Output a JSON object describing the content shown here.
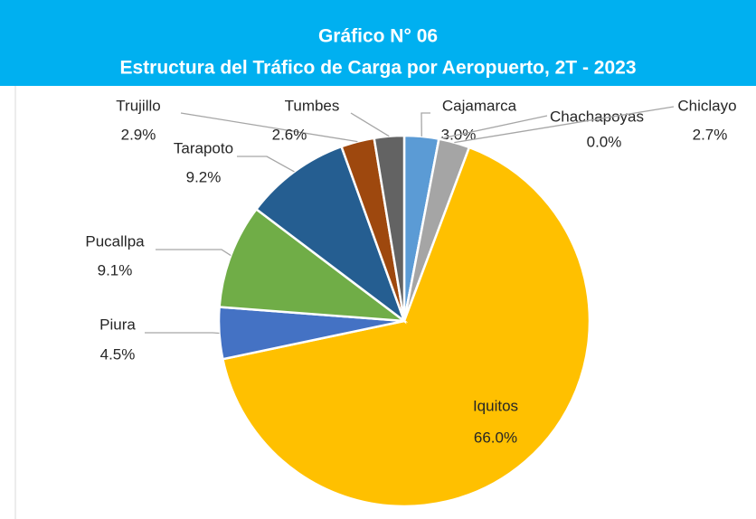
{
  "chart_data": {
    "type": "pie",
    "title": "Gráfico N° 06",
    "subtitle": "Estructura del Tráfico de Carga por Aeropuerto,  2T - 2023",
    "categories": [
      "Cajamarca",
      "Chachapoyas",
      "Chiclayo",
      "Iquitos",
      "Piura",
      "Pucallpa",
      "Tarapoto",
      "Trujillo",
      "Tumbes"
    ],
    "values": [
      3.0,
      0.0,
      2.7,
      66.0,
      4.5,
      9.1,
      9.2,
      2.9,
      2.6
    ],
    "value_labels": [
      "3.0%",
      "0.0%",
      "2.7%",
      "66.0%",
      "4.5%",
      "9.1%",
      "9.2%",
      "2.9%",
      "2.6%"
    ],
    "colors": [
      "#5b9bd5",
      "#ed7d31",
      "#a5a5a5",
      "#ffc000",
      "#4472c4",
      "#70ad47",
      "#255e91",
      "#9e480e",
      "#636363"
    ]
  }
}
